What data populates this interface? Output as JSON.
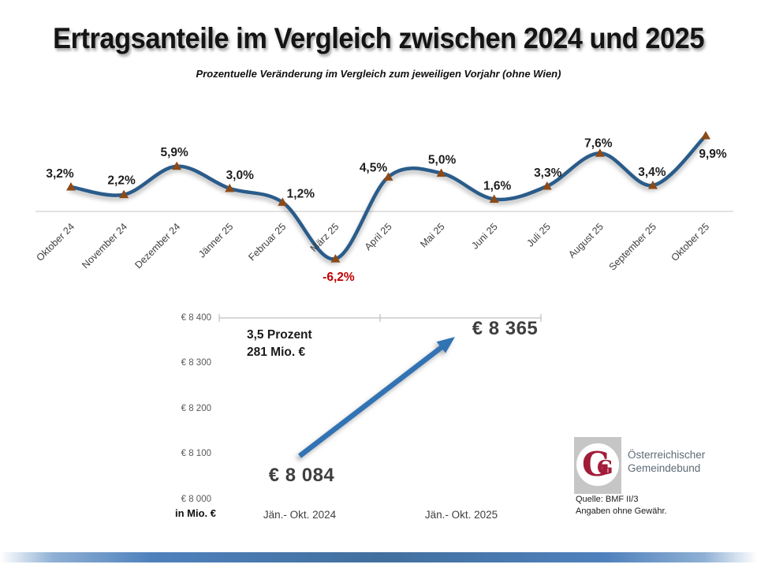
{
  "header": {
    "title": "Ertragsanteile im Vergleich zwischen 2024 und 2025",
    "subtitle": "Prozentuelle Veränderung im Vergleich zum jeweiligen Vorjahr (ohne Wien)"
  },
  "chart_data": [
    {
      "type": "line",
      "title": "Monatliche prozentuelle Veränderung",
      "categories": [
        "Oktober 24",
        "November 24",
        "Dezember 24",
        "Jänner 25",
        "Februar 25",
        "März 25",
        "April 25",
        "Mai 25",
        "Juni 25",
        "Juli 25",
        "August 25",
        "September 25",
        "Oktober 25"
      ],
      "values": [
        3.2,
        2.2,
        5.9,
        3.0,
        1.2,
        -6.2,
        4.5,
        5.0,
        1.6,
        3.3,
        7.6,
        3.4,
        9.9
      ],
      "value_labels": [
        "3,2%",
        "2,2%",
        "5,9%",
        "3,0%",
        "1,2%",
        "-6,2%",
        "4,5%",
        "5,0%",
        "1,6%",
        "3,3%",
        "7,6%",
        "3,4%",
        "9,9%"
      ],
      "ylim": [
        -8,
        12
      ],
      "grid": false,
      "legend": "none",
      "line_color": "#2A5C8A",
      "marker_color": "#8C4A17",
      "label_color": "#1f1f1f",
      "negative_label_color": "#C00000",
      "axis_line_color": "#D9D9D9"
    },
    {
      "type": "line",
      "title": "Summenvergleich Ertragsanteile",
      "categories": [
        "Jän.- Okt. 2024",
        "Jän.- Okt. 2025"
      ],
      "values": [
        8084,
        8365
      ],
      "value_labels": [
        "€ 8 084",
        "€ 8 365"
      ],
      "axis_ticks": [
        "€ 8 400",
        "€ 8 300",
        "€ 8 200",
        "€ 8 100",
        "€ 8 000"
      ],
      "axis_unit": "in Mio. €",
      "annotation_line1": "3,5 Prozent",
      "annotation_line2": "281 Mio. €",
      "ylim": [
        8000,
        8400
      ],
      "grid": false,
      "arrow_color": "#3273B4"
    }
  ],
  "footer": {
    "logo_monogram": "G",
    "logo_text_line1": "Österreichischer",
    "logo_text_line2": "Gemeindebund",
    "source_line1": "Quelle: BMF II/3",
    "source_line2": "Angaben ohne Gewähr."
  }
}
